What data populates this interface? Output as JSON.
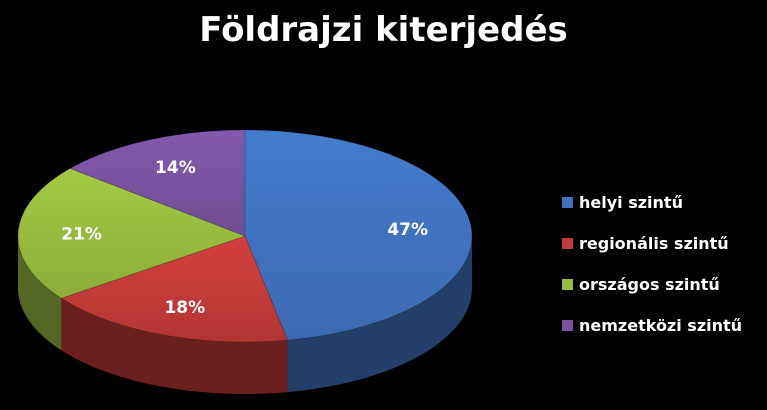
{
  "chart_data": {
    "type": "pie",
    "title": "Földrajzi kiterjedés",
    "categories": [
      "helyi szintű",
      "regionális szintű",
      "országos szintű",
      "nemzetközi szintű"
    ],
    "values": [
      47,
      18,
      21,
      14
    ],
    "labels": [
      "47%",
      "18%",
      "21%",
      "14%"
    ],
    "colors": [
      "#3f73c0",
      "#c23b38",
      "#98bb3f",
      "#7953a0"
    ],
    "legend_position": "right",
    "style": "3d"
  }
}
